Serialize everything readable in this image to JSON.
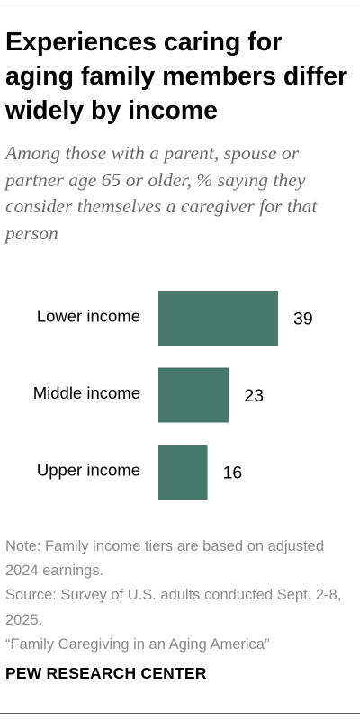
{
  "title": "Experiences caring for aging family members differ widely by income",
  "subtitle": "Among those with a parent, spouse or partner age 65 or older, % saying they consider themselves a caregiver for that person",
  "chart_data": {
    "type": "bar",
    "orientation": "horizontal",
    "categories": [
      "Lower income",
      "Middle income",
      "Upper income"
    ],
    "values": [
      39,
      23,
      16
    ],
    "value_labels": [
      "39",
      "23",
      "16"
    ],
    "bar_color": "#46796a",
    "grid": false,
    "xlim": [
      0,
      39
    ]
  },
  "notes": {
    "note": "Note: Family income tiers are based on adjusted 2024 earnings.",
    "source": "Source: Survey of U.S. adults conducted Sept. 2-8, 2025.",
    "report": "“Family Caregiving in an Aging America”"
  },
  "brand": "PEW RESEARCH CENTER",
  "colors": {
    "title": "#000000",
    "subtitle": "#6a6a6a",
    "notes": "#8a8a8a",
    "rule": "#555555"
  }
}
